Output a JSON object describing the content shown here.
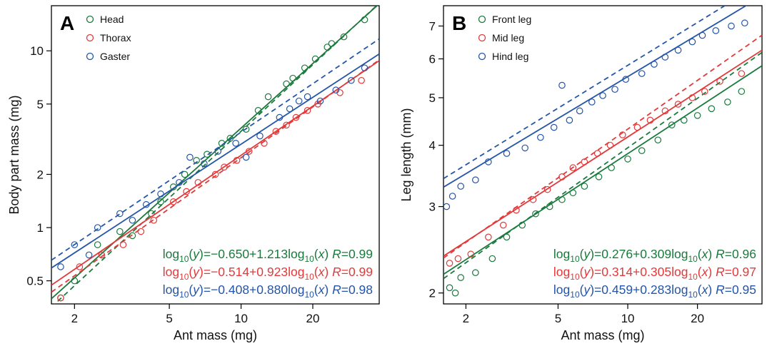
{
  "colors": {
    "green": "#1a7a3c",
    "red": "#e23a3a",
    "blue": "#2455a8"
  },
  "chart_data": [
    {
      "type": "scatter",
      "panel": "A",
      "xlabel": "Ant mass (mg)",
      "ylabel": "Body part mass (mg)",
      "xscale": "log",
      "yscale": "log",
      "xlim": [
        1.6,
        38
      ],
      "ylim": [
        0.37,
        18
      ],
      "xticks": [
        2,
        5,
        10,
        20
      ],
      "yticks": [
        0.5,
        1,
        2,
        5,
        10
      ],
      "xtick_labels": [
        "2",
        "5",
        "10",
        "20"
      ],
      "ytick_labels": [
        "0.5",
        "1",
        "2",
        "5",
        "10"
      ],
      "legend_position": "top-left",
      "series": [
        {
          "name": "Head",
          "color": "#1a7a3c",
          "fit_intercept": -0.65,
          "fit_slope": 1.213,
          "dashed_intercept": -0.705,
          "dashed_slope": 1.25,
          "points": [
            [
              1.75,
              0.4
            ],
            [
              2.0,
              0.5
            ],
            [
              2.5,
              0.8
            ],
            [
              3.1,
              0.95
            ],
            [
              3.5,
              0.9
            ],
            [
              4.2,
              1.2
            ],
            [
              4.6,
              1.4
            ],
            [
              5.2,
              1.7
            ],
            [
              5.8,
              2.0
            ],
            [
              6.5,
              2.4
            ],
            [
              7.2,
              2.6
            ],
            [
              8.3,
              3.0
            ],
            [
              9.0,
              3.2
            ],
            [
              10.5,
              3.6
            ],
            [
              11.8,
              4.6
            ],
            [
              13.0,
              5.5
            ],
            [
              15.5,
              6.5
            ],
            [
              16.5,
              7.0
            ],
            [
              18.5,
              8.0
            ],
            [
              20.5,
              9.0
            ],
            [
              23.0,
              10.5
            ],
            [
              24.0,
              11.0
            ],
            [
              27.0,
              12.0
            ],
            [
              33.0,
              15.0
            ]
          ],
          "equation": {
            "lhs": "log",
            "sub1": "10",
            "y": "(y)",
            "mid": "=−0.650+1.213log",
            "sub2": "10",
            "x": "(x)",
            "r": "R",
            "rval": "=0.99"
          }
        },
        {
          "name": "Thorax",
          "color": "#e23a3a",
          "fit_intercept": -0.514,
          "fit_slope": 0.923,
          "dashed_intercept": -0.56,
          "dashed_slope": 0.955,
          "points": [
            [
              1.75,
              0.4
            ],
            [
              2.1,
              0.6
            ],
            [
              2.6,
              0.7
            ],
            [
              3.2,
              0.8
            ],
            [
              3.8,
              0.95
            ],
            [
              4.3,
              1.1
            ],
            [
              5.2,
              1.4
            ],
            [
              5.9,
              1.6
            ],
            [
              6.6,
              1.8
            ],
            [
              7.8,
              2.0
            ],
            [
              8.5,
              2.2
            ],
            [
              9.6,
              2.4
            ],
            [
              10.8,
              2.7
            ],
            [
              12.5,
              3.0
            ],
            [
              14.0,
              3.5
            ],
            [
              15.5,
              3.8
            ],
            [
              17.0,
              4.2
            ],
            [
              19.0,
              4.6
            ],
            [
              21.0,
              5.0
            ],
            [
              26.0,
              5.8
            ],
            [
              32.0,
              6.8
            ]
          ],
          "equation": {
            "lhs": "log",
            "sub1": "10",
            "y": "(y)",
            "mid": "=−0.514+0.923log",
            "sub2": "10",
            "x": "(x)",
            "r": "R",
            "rval": "=0.99"
          }
        },
        {
          "name": "Gaster",
          "color": "#2455a8",
          "fit_intercept": -0.408,
          "fit_slope": 0.88,
          "dashed_intercept": -0.37,
          "dashed_slope": 0.91,
          "points": [
            [
              1.75,
              0.6
            ],
            [
              2.0,
              0.8
            ],
            [
              2.3,
              0.7
            ],
            [
              2.5,
              1.0
            ],
            [
              3.1,
              1.2
            ],
            [
              3.5,
              1.1
            ],
            [
              4.0,
              1.35
            ],
            [
              4.6,
              1.55
            ],
            [
              5.5,
              1.8
            ],
            [
              6.1,
              2.5
            ],
            [
              7.0,
              2.3
            ],
            [
              8.0,
              2.7
            ],
            [
              9.5,
              3.0
            ],
            [
              10.5,
              2.5
            ],
            [
              12.0,
              3.3
            ],
            [
              14.5,
              4.2
            ],
            [
              16.0,
              4.7
            ],
            [
              17.5,
              5.2
            ],
            [
              19.0,
              5.5
            ],
            [
              21.5,
              5.2
            ],
            [
              25.0,
              6.0
            ],
            [
              29.0,
              6.8
            ],
            [
              33.0,
              8.0
            ]
          ],
          "equation": {
            "lhs": "log",
            "sub1": "10",
            "y": "(y)",
            "mid": "=−0.408+0.880log",
            "sub2": "10",
            "x": "(x)",
            "r": "R",
            "rval": "=0.98"
          }
        }
      ]
    },
    {
      "type": "scatter",
      "panel": "B",
      "xlabel": "Ant mass (mg)",
      "ylabel": "Leg length (mm)",
      "xscale": "log",
      "yscale": "log",
      "xlim": [
        1.6,
        38
      ],
      "ylim": [
        1.9,
        7.7
      ],
      "xticks": [
        2,
        5,
        10,
        20
      ],
      "yticks": [
        2,
        3,
        4,
        5,
        6,
        7
      ],
      "xtick_labels": [
        "2",
        "5",
        "10",
        "20"
      ],
      "ytick_labels": [
        "2",
        "3",
        "4",
        "5",
        "6",
        "7"
      ],
      "legend_position": "top-left",
      "series": [
        {
          "name": "Front leg",
          "color": "#1a7a3c",
          "fit_intercept": 0.276,
          "fit_slope": 0.309,
          "dashed_intercept": 0.262,
          "dashed_slope": 0.335,
          "points": [
            [
              1.7,
              2.05
            ],
            [
              1.8,
              2.0
            ],
            [
              1.9,
              2.15
            ],
            [
              2.2,
              2.2
            ],
            [
              2.6,
              2.35
            ],
            [
              3.0,
              2.6
            ],
            [
              3.5,
              2.75
            ],
            [
              4.0,
              2.9
            ],
            [
              4.6,
              3.0
            ],
            [
              5.2,
              3.1
            ],
            [
              5.8,
              3.2
            ],
            [
              6.5,
              3.3
            ],
            [
              7.5,
              3.45
            ],
            [
              8.5,
              3.6
            ],
            [
              10.0,
              3.75
            ],
            [
              11.5,
              3.9
            ],
            [
              13.5,
              4.1
            ],
            [
              15.5,
              4.4
            ],
            [
              17.5,
              4.5
            ],
            [
              20.0,
              4.6
            ],
            [
              23.0,
              4.75
            ],
            [
              27.0,
              4.9
            ],
            [
              31.0,
              5.15
            ]
          ],
          "equation": {
            "lhs": "log",
            "sub1": "10",
            "y": "(y)",
            "mid": "=0.276+0.309log",
            "sub2": "10",
            "x": "(x)",
            "r": "R",
            "rval": "=0.96"
          }
        },
        {
          "name": "Mid leg",
          "color": "#e23a3a",
          "fit_intercept": 0.314,
          "fit_slope": 0.305,
          "dashed_intercept": 0.305,
          "dashed_slope": 0.33,
          "points": [
            [
              1.7,
              2.3
            ],
            [
              1.85,
              2.35
            ],
            [
              2.1,
              2.4
            ],
            [
              2.5,
              2.6
            ],
            [
              2.9,
              2.75
            ],
            [
              3.3,
              2.95
            ],
            [
              3.9,
              3.1
            ],
            [
              4.5,
              3.25
            ],
            [
              5.2,
              3.45
            ],
            [
              5.8,
              3.6
            ],
            [
              6.5,
              3.7
            ],
            [
              7.4,
              3.85
            ],
            [
              8.4,
              4.0
            ],
            [
              9.5,
              4.2
            ],
            [
              11.0,
              4.35
            ],
            [
              12.5,
              4.5
            ],
            [
              14.5,
              4.7
            ],
            [
              16.5,
              4.85
            ],
            [
              19.0,
              5.0
            ],
            [
              21.5,
              5.15
            ],
            [
              25.0,
              5.4
            ],
            [
              31.0,
              5.6
            ]
          ],
          "equation": {
            "lhs": "log",
            "sub1": "10",
            "y": "(y)",
            "mid": "=0.314+0.305log",
            "sub2": "10",
            "x": "(x)",
            "r": "R",
            "rval": "=0.97"
          }
        },
        {
          "name": "Hind leg",
          "color": "#2455a8",
          "fit_intercept": 0.459,
          "fit_slope": 0.283,
          "dashed_intercept": 0.475,
          "dashed_slope": 0.29,
          "points": [
            [
              1.65,
              3.0
            ],
            [
              1.75,
              3.15
            ],
            [
              1.9,
              3.3
            ],
            [
              2.2,
              3.4
            ],
            [
              2.5,
              3.7
            ],
            [
              3.0,
              3.85
            ],
            [
              3.6,
              3.95
            ],
            [
              4.2,
              4.15
            ],
            [
              4.8,
              4.35
            ],
            [
              5.2,
              5.3
            ],
            [
              5.6,
              4.5
            ],
            [
              6.2,
              4.7
            ],
            [
              7.0,
              4.9
            ],
            [
              7.8,
              5.05
            ],
            [
              8.8,
              5.2
            ],
            [
              9.8,
              5.45
            ],
            [
              11.5,
              5.6
            ],
            [
              13.0,
              5.85
            ],
            [
              14.5,
              6.05
            ],
            [
              16.5,
              6.25
            ],
            [
              19.0,
              6.5
            ],
            [
              21.0,
              6.7
            ],
            [
              24.0,
              6.85
            ],
            [
              28.0,
              7.0
            ],
            [
              32.0,
              7.1
            ]
          ],
          "equation": {
            "lhs": "log",
            "sub1": "10",
            "y": "(y)",
            "mid": "=0.459+0.283log",
            "sub2": "10",
            "x": "(x)",
            "r": "R",
            "rval": "=0.95"
          }
        }
      ]
    }
  ]
}
